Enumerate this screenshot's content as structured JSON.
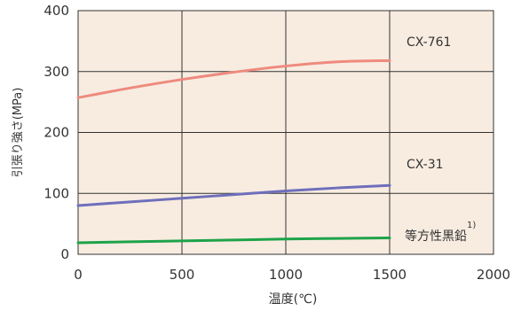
{
  "chart_data": {
    "type": "line",
    "title": "",
    "xlabel": "温度(℃)",
    "ylabel": "引張り強さ(MPa)",
    "xlim": [
      0,
      2000
    ],
    "ylim": [
      0,
      400
    ],
    "xticks": [
      0,
      500,
      1000,
      1500,
      2000
    ],
    "yticks": [
      0,
      100,
      200,
      300,
      400
    ],
    "x_tick_labels": [
      "0",
      "500",
      "1000",
      "1500",
      "2000"
    ],
    "y_tick_labels": [
      "0",
      "100",
      "200",
      "300",
      "400"
    ],
    "grid": true,
    "plot_background": "#f8ece1",
    "series": [
      {
        "name": "CX-761",
        "color": "#ef8a7e",
        "x": [
          0,
          250,
          500,
          750,
          1000,
          1250,
          1500
        ],
        "y": [
          257,
          273,
          287,
          299,
          309,
          316,
          318
        ]
      },
      {
        "name": "CX-31",
        "color": "#6e6fbb",
        "x": [
          0,
          250,
          500,
          750,
          1000,
          1250,
          1500
        ],
        "y": [
          80,
          86,
          92,
          98,
          104,
          109,
          113
        ]
      },
      {
        "name": "等方性黒鉛",
        "name_superscript": "1)",
        "color": "#1ea349",
        "x": [
          0,
          250,
          500,
          750,
          1000,
          1250,
          1500
        ],
        "y": [
          19,
          20.5,
          22,
          23.5,
          25,
          26,
          27
        ]
      }
    ]
  }
}
